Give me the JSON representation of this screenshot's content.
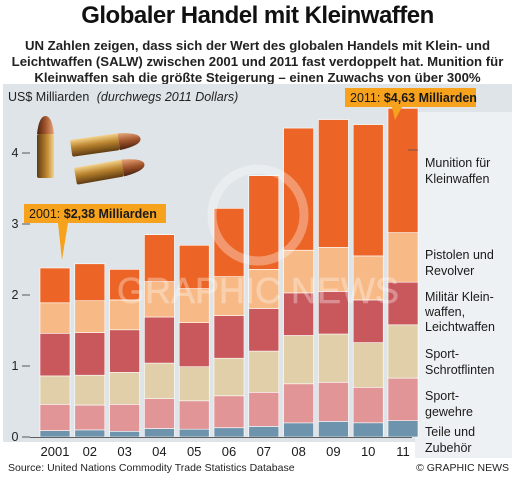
{
  "title": "Globaler Handel mit Kleinwaffen",
  "subtitle": [
    "UN Zahlen zeigen, dass sich der Wert des globalen Handels mit Klein- und",
    "Leichtwaffen (SALW) zwischen 2001 und 2011 fast verdoppelt hat. Munition für",
    "Kleinwaffen sah die größte Steigerung – einen Zuwachs von über 300%"
  ],
  "source": "Source: United Nations Commodity Trade Statistics Database",
  "credit": "© GRAPHIC NEWS",
  "watermark": "GRAPHIC NEWS",
  "callouts": {
    "start": {
      "prefix": "2001: ",
      "value": "$2,38 Milliarden"
    },
    "end": {
      "prefix": "2011: ",
      "value": "$4,63 Milliarden"
    }
  },
  "colors": {
    "munition": "#ec6527",
    "pistolen": "#f7ba87",
    "militaer": "#c9585d",
    "schrotflinten": "#e0cfa8",
    "sportgewehre": "#e19597",
    "teile": "#6d94ac",
    "callout_bg": "#f6a21d",
    "panel_bg": "#dfe4e8"
  },
  "icons": [
    "ammunition-cartridges-illustration"
  ],
  "chart_data": {
    "type": "bar",
    "stacked": true,
    "ylabel": "US$ Milliarden",
    "ylabel_note": "(durchwegs 2011 Dollars)",
    "ylim": [
      0,
      4.6
    ],
    "yticks": [
      0,
      1,
      2,
      3,
      4
    ],
    "grid": false,
    "legend_position": "right",
    "categories": [
      "2001",
      "02",
      "03",
      "04",
      "05",
      "06",
      "07",
      "08",
      "09",
      "10",
      "11"
    ],
    "series": [
      {
        "name": "Teile und Zubehör",
        "color_key": "teile",
        "values": [
          0.09,
          0.1,
          0.08,
          0.12,
          0.11,
          0.13,
          0.15,
          0.2,
          0.22,
          0.2,
          0.23
        ]
      },
      {
        "name": "Sportgewehre",
        "color_key": "sportgewehre",
        "values": [
          0.37,
          0.35,
          0.38,
          0.42,
          0.4,
          0.45,
          0.48,
          0.55,
          0.55,
          0.5,
          0.6
        ]
      },
      {
        "name": "Sport-Schrotflinten",
        "color_key": "schrotflinten",
        "values": [
          0.4,
          0.42,
          0.45,
          0.5,
          0.48,
          0.53,
          0.58,
          0.68,
          0.68,
          0.63,
          0.75
        ]
      },
      {
        "name": "Militär Kleinwaffen, Leichtwaffen",
        "color_key": "militaer",
        "values": [
          0.6,
          0.6,
          0.6,
          0.65,
          0.62,
          0.6,
          0.6,
          0.6,
          0.6,
          0.6,
          0.6
        ]
      },
      {
        "name": "Pistolen und Revolver",
        "color_key": "pistolen",
        "values": [
          0.43,
          0.45,
          0.42,
          0.5,
          0.48,
          0.55,
          0.55,
          0.6,
          0.62,
          0.62,
          0.7
        ]
      },
      {
        "name": "Munition für Kleinwaffen",
        "color_key": "munition",
        "values": [
          0.49,
          0.52,
          0.43,
          0.66,
          0.61,
          0.96,
          1.32,
          1.72,
          1.8,
          1.85,
          1.75
        ]
      }
    ],
    "totals_labeled": {
      "2001": 2.38,
      "11": 4.63
    }
  }
}
